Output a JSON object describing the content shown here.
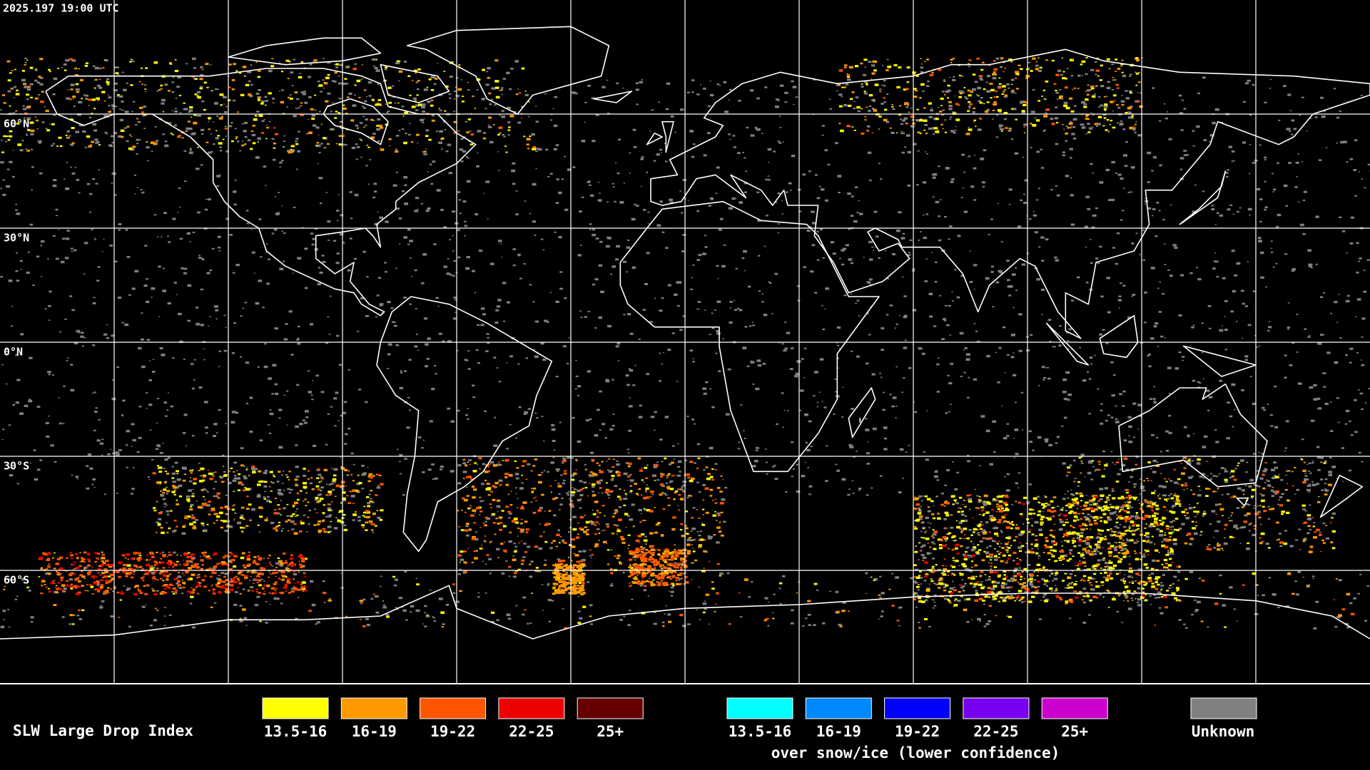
{
  "header": {
    "timestamp": "2025.197 19:00 UTC"
  },
  "map": {
    "lat_labels": [
      "60°N",
      "30°N",
      "0°N",
      "30°S",
      "60°S"
    ]
  },
  "legend": {
    "title": "SLW Large Drop Index",
    "items": [
      {
        "label": "13.5-16",
        "color": "#ffff00"
      },
      {
        "label": "16-19",
        "color": "#ff9900"
      },
      {
        "label": "19-22",
        "color": "#ff5500"
      },
      {
        "label": "22-25",
        "color": "#ee0000"
      },
      {
        "label": "25+",
        "color": "#660000"
      }
    ],
    "snow_ice_items": [
      {
        "label": "13.5-16",
        "color": "#00ffff"
      },
      {
        "label": "16-19",
        "color": "#0088ff"
      },
      {
        "label": "19-22",
        "color": "#0000ff"
      },
      {
        "label": "22-25",
        "color": "#7700ee"
      },
      {
        "label": "25+",
        "color": "#cc00cc"
      }
    ],
    "snow_ice_note": "over snow/ice (lower confidence)",
    "unknown": {
      "label": "Unknown",
      "color": "#808080"
    }
  }
}
